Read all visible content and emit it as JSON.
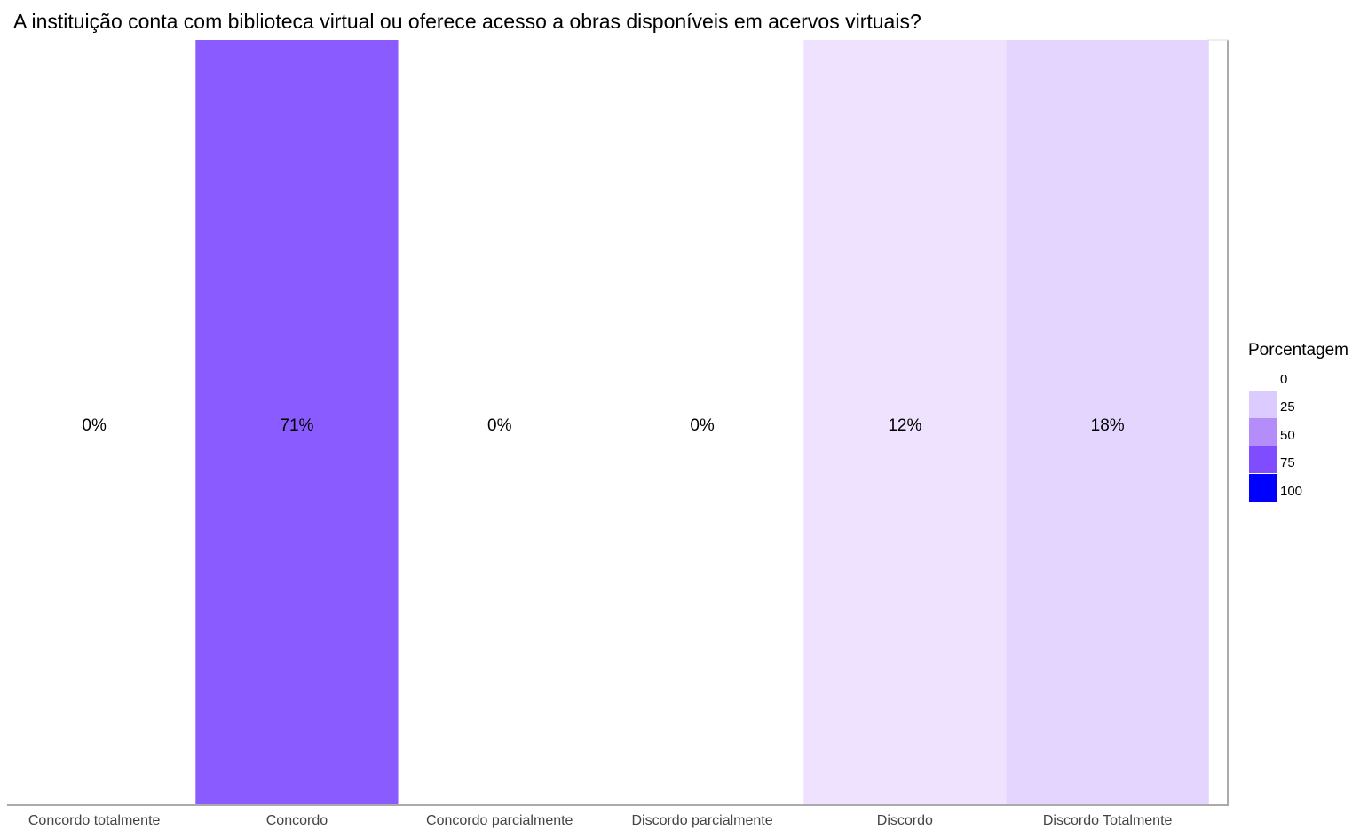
{
  "chart_data": {
    "type": "heatmap",
    "title": "A instituição conta com biblioteca virtual ou oferece acesso a obras disponíveis em acervos virtuais?",
    "xlabel": "",
    "ylabel": "",
    "categories": [
      "Concordo totalmente",
      "Concordo",
      "Concordo parcialmente",
      "Discordo parcialmente",
      "Discordo",
      "Discordo Totalmente"
    ],
    "values": [
      0,
      71,
      0,
      0,
      12,
      18
    ],
    "value_labels": [
      "0%",
      "71%",
      "0%",
      "0%",
      "12%",
      "18%"
    ],
    "cell_colors": [
      "#ffffff",
      "#8a5cff",
      "#ffffff",
      "#ffffff",
      "#efe2ff",
      "#e4d5ff"
    ],
    "legend": {
      "title": "Porcentagem",
      "ticks": [
        "0",
        "25",
        "50",
        "75",
        "100"
      ],
      "swatch_colors": [
        "#dccbfe",
        "#b58dfb",
        "#7f4dff",
        "#0000ff"
      ],
      "placement": "right"
    },
    "grid": false
  }
}
